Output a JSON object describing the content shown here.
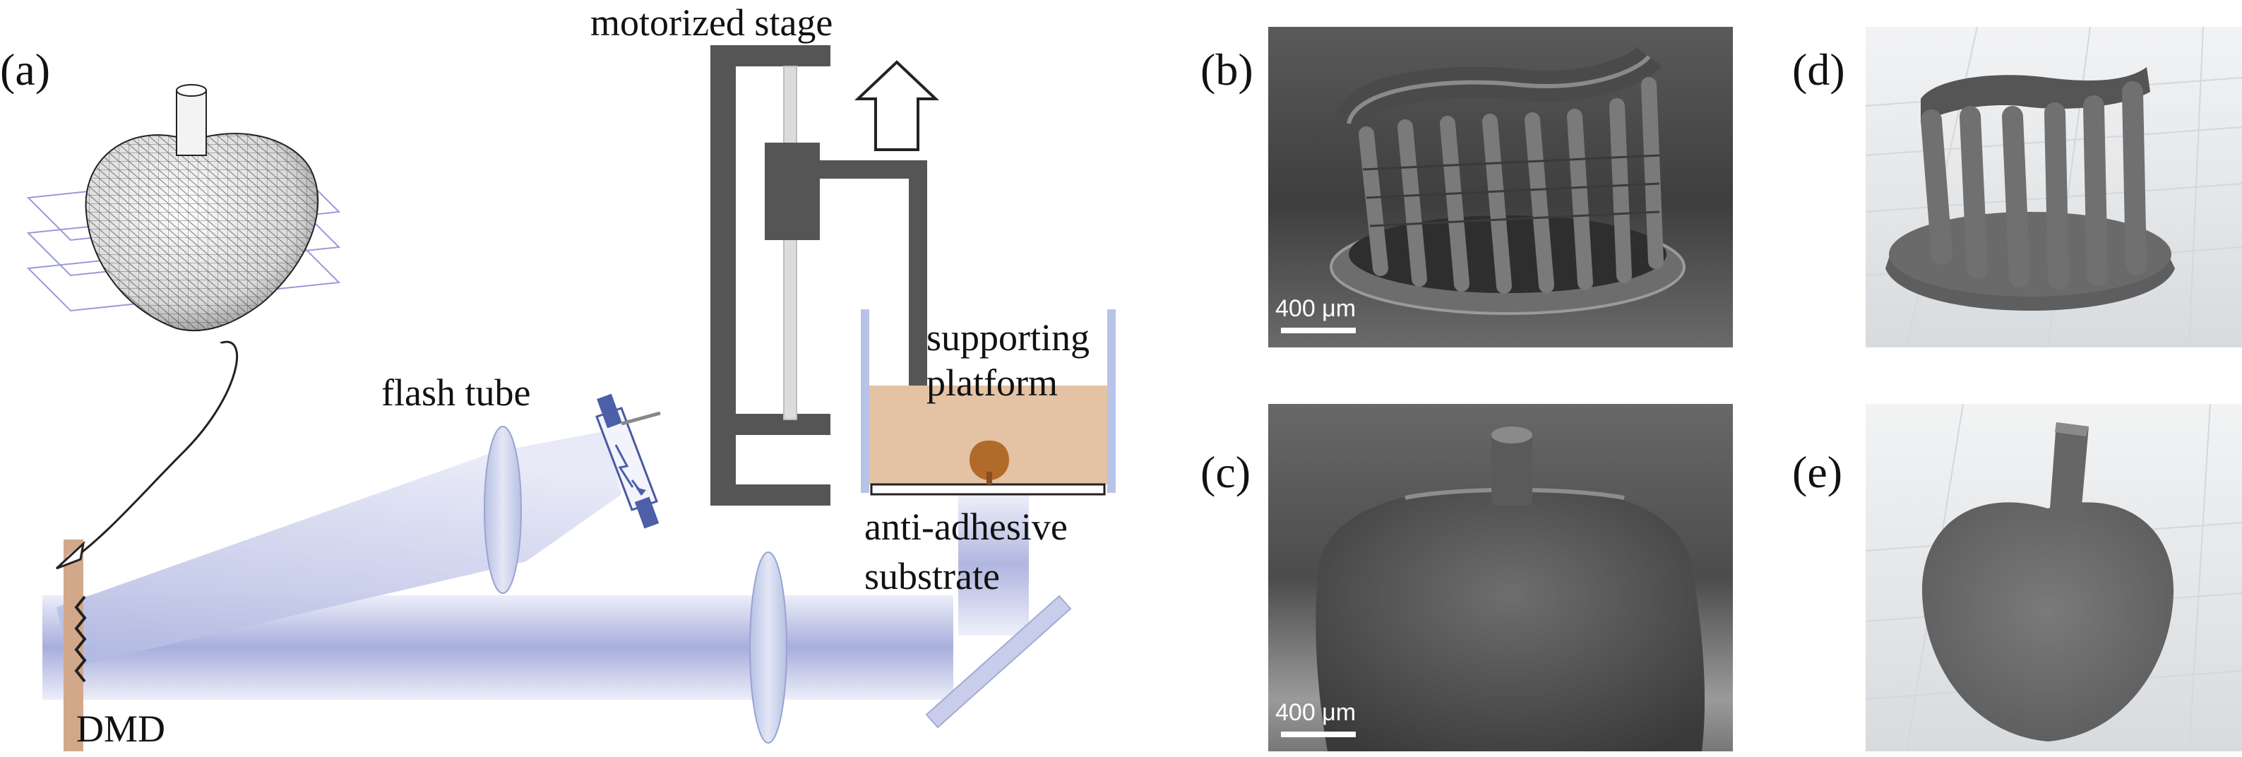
{
  "panels": {
    "a": {
      "letter": "(a)"
    },
    "b": {
      "letter": "(b)",
      "scale_bar": "400 μm"
    },
    "c": {
      "letter": "(c)",
      "scale_bar": "400 μm"
    },
    "d": {
      "letter": "(d)"
    },
    "e": {
      "letter": "(e)"
    }
  },
  "setup_labels": {
    "motorized_stage": "motorized stage",
    "supporting_platform_line1": "supporting",
    "supporting_platform_line2": "platform",
    "flash_tube": "flash tube",
    "anti_adhesive_line1": "anti-adhesive",
    "anti_adhesive_line2": "substrate",
    "dmd": "DMD"
  },
  "colors": {
    "beam": "#c3c8ea",
    "stage": "#555555",
    "resin": "#e4c2a4",
    "dmd": "#d2a88a",
    "print_object": "#b06a2a",
    "sem_background": "#4a4a4a",
    "render_background": "#e6e8ea"
  }
}
